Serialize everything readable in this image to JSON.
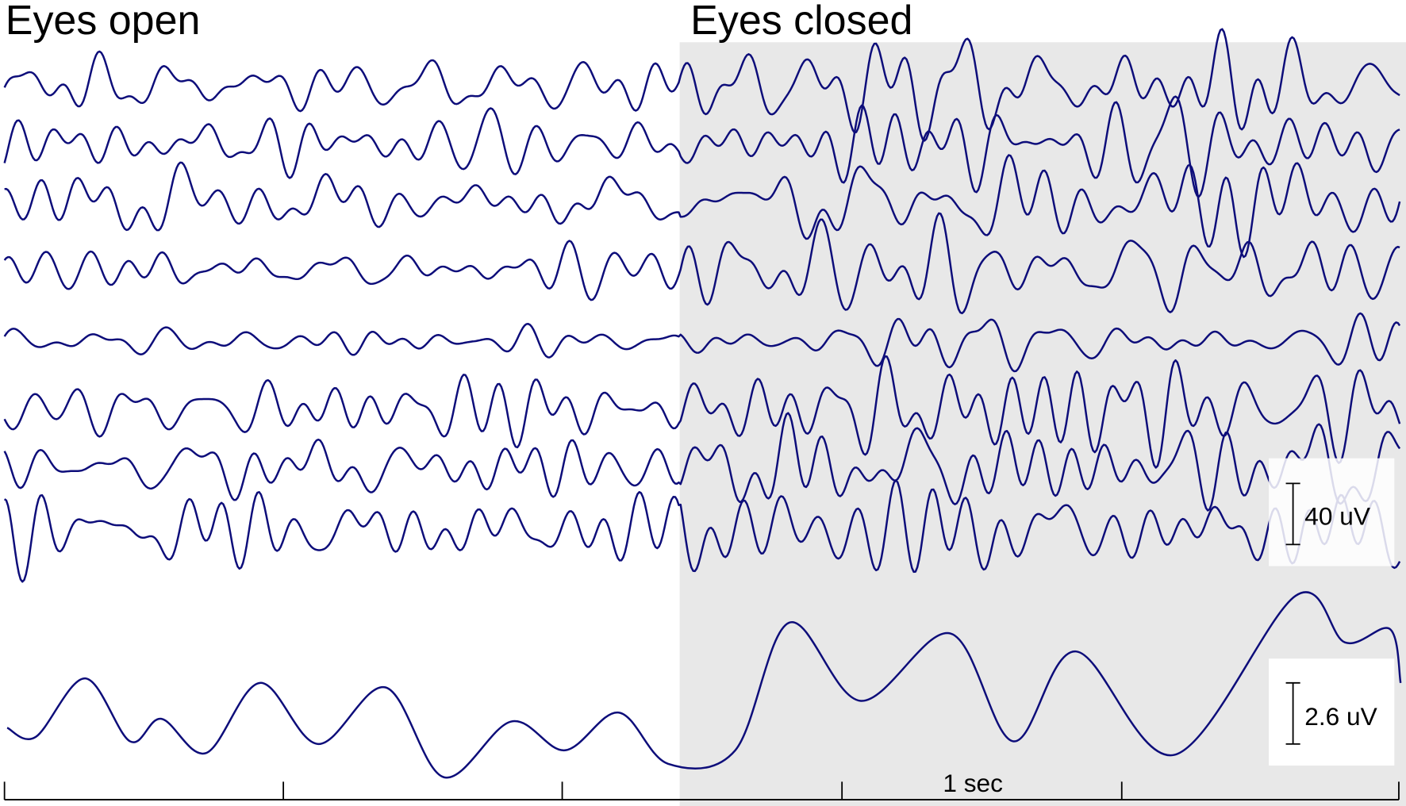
{
  "labels": {
    "eyes_open": "Eyes open",
    "eyes_closed": "Eyes closed",
    "scale_top": "40 uV",
    "scale_bottom": "2.6 uV",
    "time_scale": "1 sec"
  }
}
